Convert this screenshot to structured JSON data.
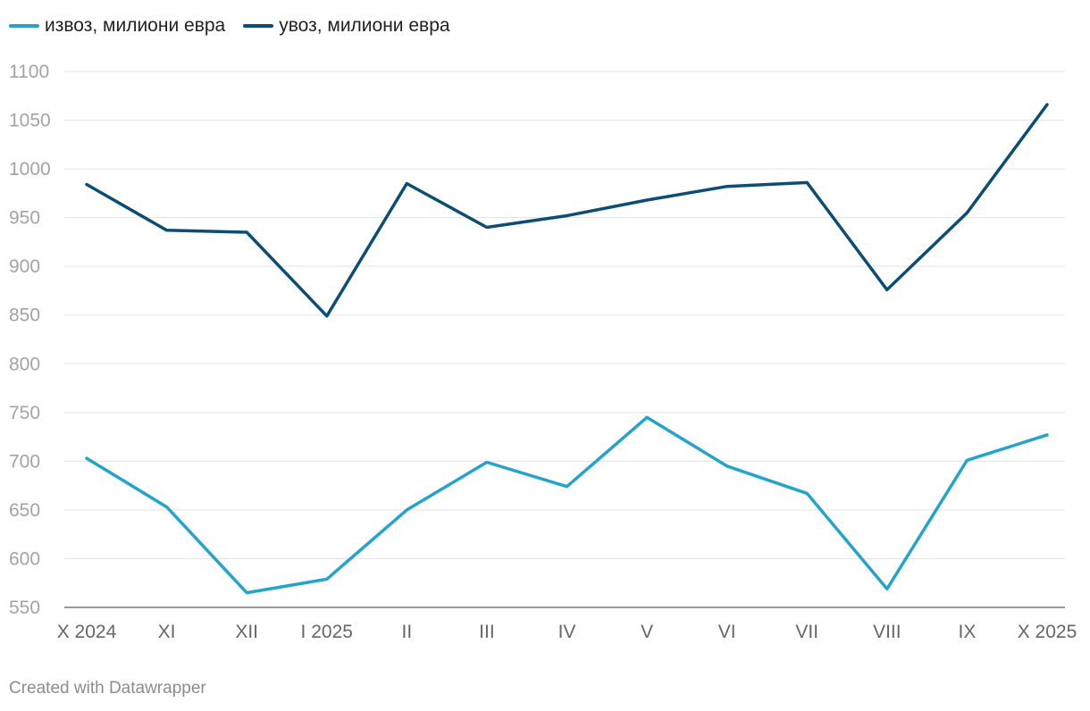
{
  "chart_data": {
    "type": "line",
    "title": "",
    "xlabel": "",
    "ylabel": "",
    "categories": [
      "X 2024",
      "XI",
      "XII",
      "I 2025",
      "II",
      "III",
      "IV",
      "V",
      "VI",
      "VII",
      "VIII",
      "IX",
      "X 2025"
    ],
    "series": [
      {
        "name": "извоз, милиони евра",
        "color": "#24a3cd",
        "values": [
          703,
          653,
          565,
          579,
          650,
          699,
          674,
          745,
          695,
          667,
          569,
          701,
          727
        ]
      },
      {
        "name": "увоз, милиони евра",
        "color": "#0b4d74",
        "values": [
          984,
          937,
          935,
          849,
          985,
          940,
          952,
          968,
          982,
          986,
          876,
          955,
          1066
        ]
      }
    ],
    "ylim": [
      550,
      1100
    ],
    "yticks": [
      550,
      600,
      650,
      700,
      750,
      800,
      850,
      900,
      950,
      1000,
      1050,
      1100
    ],
    "grid": true,
    "legend_position": "top-left"
  },
  "footer": {
    "credit": "Created with Datawrapper"
  }
}
